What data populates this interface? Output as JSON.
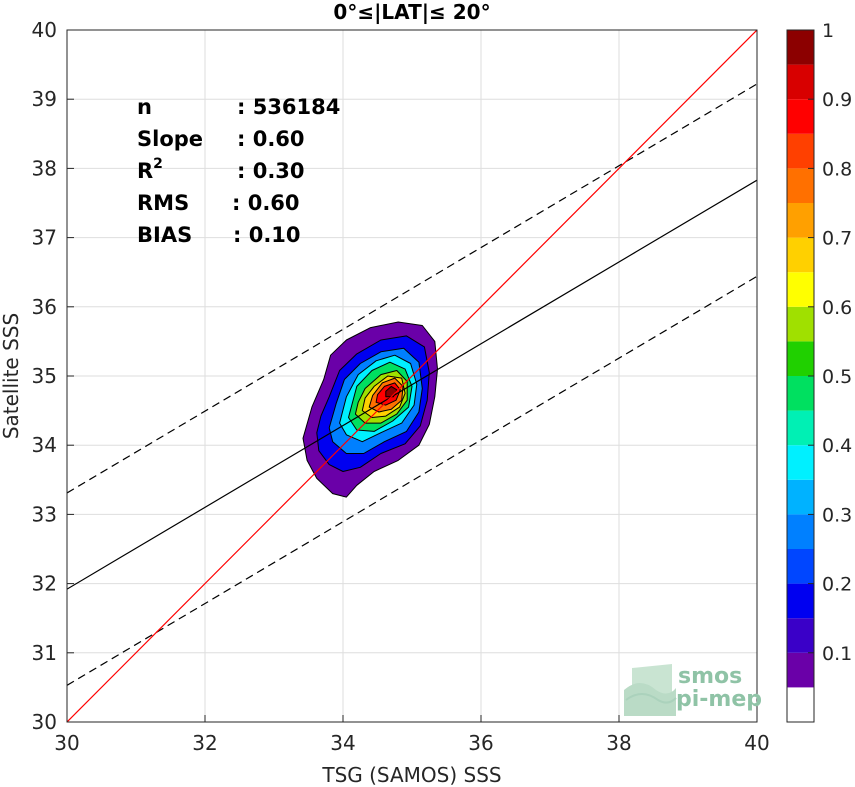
{
  "chart_data": {
    "type": "heatmap",
    "title": "0°≤|LAT|≤ 20°",
    "xlabel": "TSG (SAMOS) SSS",
    "ylabel": "Satellite SSS",
    "xlim": [
      30,
      40
    ],
    "ylim": [
      30,
      40
    ],
    "xticks": [
      "30",
      "32",
      "34",
      "36",
      "38",
      "40"
    ],
    "yticks": [
      "30",
      "31",
      "32",
      "33",
      "34",
      "35",
      "36",
      "37",
      "38",
      "39",
      "40"
    ],
    "grid": true,
    "stats": [
      {
        "label": "n",
        "value": ": 536184",
        "superscript": ""
      },
      {
        "label": "Slope",
        "value": ": 0.60",
        "superscript": ""
      },
      {
        "label": "R",
        "value": ": 0.30",
        "superscript": "2"
      },
      {
        "label": "RMS",
        "value": ": 0.60",
        "superscript": ""
      },
      {
        "label": "BIAS",
        "value": ": 0.10",
        "superscript": ""
      }
    ],
    "lines": {
      "identity": {
        "slope": 1.0,
        "intercept": 0.0,
        "color": "#ff0000",
        "style": "solid"
      },
      "regression": {
        "x": [
          30,
          40
        ],
        "y": [
          31.92,
          37.83
        ],
        "color": "#000000",
        "style": "solid"
      },
      "upper_band": {
        "x": [
          30,
          40
        ],
        "y": [
          33.31,
          39.22
        ],
        "color": "#000000",
        "style": "dashed"
      },
      "lower_band": {
        "x": [
          30,
          40
        ],
        "y": [
          30.53,
          36.44
        ],
        "color": "#000000",
        "style": "dashed"
      }
    },
    "density_center": {
      "x": 34.7,
      "y": 34.75
    },
    "density_contours": [
      {
        "level": 0.05,
        "points": [
          [
            33.42,
            34.1
          ],
          [
            33.48,
            33.78
          ],
          [
            33.62,
            33.52
          ],
          [
            33.85,
            33.3
          ],
          [
            34.05,
            33.25
          ],
          [
            34.2,
            33.42
          ],
          [
            34.45,
            33.62
          ],
          [
            34.8,
            33.78
          ],
          [
            35.1,
            34.0
          ],
          [
            35.25,
            34.3
          ],
          [
            35.33,
            34.7
          ],
          [
            35.37,
            35.1
          ],
          [
            35.33,
            35.5
          ],
          [
            35.15,
            35.73
          ],
          [
            34.8,
            35.78
          ],
          [
            34.4,
            35.7
          ],
          [
            34.05,
            35.52
          ],
          [
            33.82,
            35.3
          ],
          [
            33.72,
            34.95
          ],
          [
            33.55,
            34.55
          ]
        ]
      },
      {
        "level": 0.15,
        "points": [
          [
            33.62,
            34.18
          ],
          [
            33.65,
            33.92
          ],
          [
            33.8,
            33.72
          ],
          [
            34.0,
            33.62
          ],
          [
            34.25,
            33.68
          ],
          [
            34.55,
            33.88
          ],
          [
            34.9,
            34.02
          ],
          [
            35.12,
            34.28
          ],
          [
            35.22,
            34.65
          ],
          [
            35.25,
            35.05
          ],
          [
            35.18,
            35.42
          ],
          [
            34.92,
            35.58
          ],
          [
            34.55,
            35.52
          ],
          [
            34.2,
            35.32
          ],
          [
            33.95,
            35.08
          ],
          [
            33.8,
            34.7
          ],
          [
            33.68,
            34.42
          ]
        ]
      },
      {
        "level": 0.25,
        "points": [
          [
            33.8,
            34.25
          ],
          [
            33.85,
            34.05
          ],
          [
            34.05,
            33.88
          ],
          [
            34.3,
            33.88
          ],
          [
            34.6,
            34.05
          ],
          [
            34.92,
            34.2
          ],
          [
            35.1,
            34.48
          ],
          [
            35.15,
            34.82
          ],
          [
            35.1,
            35.2
          ],
          [
            34.88,
            35.4
          ],
          [
            34.55,
            35.35
          ],
          [
            34.25,
            35.18
          ],
          [
            34.02,
            34.95
          ],
          [
            33.9,
            34.6
          ]
        ]
      },
      {
        "level": 0.35,
        "points": [
          [
            33.95,
            34.32
          ],
          [
            34.05,
            34.15
          ],
          [
            34.28,
            34.05
          ],
          [
            34.55,
            34.18
          ],
          [
            34.85,
            34.32
          ],
          [
            35.03,
            34.58
          ],
          [
            35.07,
            34.88
          ],
          [
            34.98,
            35.18
          ],
          [
            34.75,
            35.3
          ],
          [
            34.48,
            35.22
          ],
          [
            34.22,
            35.02
          ],
          [
            34.05,
            34.7
          ]
        ]
      },
      {
        "level": 0.45,
        "points": [
          [
            34.08,
            34.4
          ],
          [
            34.2,
            34.22
          ],
          [
            34.45,
            34.2
          ],
          [
            34.72,
            34.35
          ],
          [
            34.95,
            34.55
          ],
          [
            35.0,
            34.85
          ],
          [
            34.9,
            35.1
          ],
          [
            34.68,
            35.2
          ],
          [
            34.42,
            35.08
          ],
          [
            34.2,
            34.85
          ]
        ]
      },
      {
        "level": 0.55,
        "points": [
          [
            34.18,
            34.45
          ],
          [
            34.32,
            34.32
          ],
          [
            34.55,
            34.32
          ],
          [
            34.78,
            34.45
          ],
          [
            34.93,
            34.65
          ],
          [
            34.93,
            34.92
          ],
          [
            34.78,
            35.08
          ],
          [
            34.55,
            35.02
          ],
          [
            34.32,
            34.82
          ],
          [
            34.22,
            34.62
          ]
        ]
      },
      {
        "level": 0.65,
        "points": [
          [
            34.28,
            34.5
          ],
          [
            34.42,
            34.4
          ],
          [
            34.62,
            34.42
          ],
          [
            34.82,
            34.55
          ],
          [
            34.9,
            34.75
          ],
          [
            34.85,
            34.97
          ],
          [
            34.65,
            35.0
          ],
          [
            34.45,
            34.85
          ],
          [
            34.32,
            34.68
          ]
        ]
      },
      {
        "level": 0.75,
        "points": [
          [
            34.38,
            34.55
          ],
          [
            34.52,
            34.48
          ],
          [
            34.7,
            34.52
          ],
          [
            34.85,
            34.65
          ],
          [
            34.87,
            34.85
          ],
          [
            34.75,
            34.97
          ],
          [
            34.57,
            34.9
          ],
          [
            34.43,
            34.72
          ]
        ]
      },
      {
        "level": 0.85,
        "points": [
          [
            34.48,
            34.62
          ],
          [
            34.62,
            34.58
          ],
          [
            34.77,
            34.65
          ],
          [
            34.83,
            34.8
          ],
          [
            34.75,
            34.9
          ],
          [
            34.6,
            34.85
          ],
          [
            34.5,
            34.73
          ]
        ]
      },
      {
        "level": 0.95,
        "points": [
          [
            34.62,
            34.7
          ],
          [
            34.73,
            34.7
          ],
          [
            34.78,
            34.8
          ],
          [
            34.7,
            34.85
          ],
          [
            34.62,
            34.78
          ]
        ]
      }
    ],
    "colorbar": {
      "ticks": [
        "0.1",
        "0.2",
        "0.3",
        "0.4",
        "0.5",
        "0.6",
        "0.7",
        "0.8",
        "0.9",
        "1"
      ],
      "levels": [
        {
          "from": 0.0,
          "to": 0.05,
          "color": "#ffffff"
        },
        {
          "from": 0.05,
          "to": 0.1,
          "color": "#6a00a8"
        },
        {
          "from": 0.1,
          "to": 0.15,
          "color": "#3a00c8"
        },
        {
          "from": 0.15,
          "to": 0.2,
          "color": "#0000f0"
        },
        {
          "from": 0.2,
          "to": 0.25,
          "color": "#0046ff"
        },
        {
          "from": 0.25,
          "to": 0.3,
          "color": "#0080ff"
        },
        {
          "from": 0.3,
          "to": 0.35,
          "color": "#00b2ff"
        },
        {
          "from": 0.35,
          "to": 0.4,
          "color": "#00f0ff"
        },
        {
          "from": 0.4,
          "to": 0.45,
          "color": "#00f0b4"
        },
        {
          "from": 0.45,
          "to": 0.5,
          "color": "#00e060"
        },
        {
          "from": 0.5,
          "to": 0.55,
          "color": "#20d000"
        },
        {
          "from": 0.55,
          "to": 0.6,
          "color": "#a0e000"
        },
        {
          "from": 0.6,
          "to": 0.65,
          "color": "#ffff00"
        },
        {
          "from": 0.65,
          "to": 0.7,
          "color": "#ffd000"
        },
        {
          "from": 0.7,
          "to": 0.75,
          "color": "#ffa000"
        },
        {
          "from": 0.75,
          "to": 0.8,
          "color": "#ff7000"
        },
        {
          "from": 0.8,
          "to": 0.85,
          "color": "#ff4000"
        },
        {
          "from": 0.85,
          "to": 0.9,
          "color": "#ff0000"
        },
        {
          "from": 0.9,
          "to": 0.95,
          "color": "#d80000"
        },
        {
          "from": 0.95,
          "to": 1.0,
          "color": "#8c0000"
        }
      ]
    }
  },
  "watermark": {
    "line1": "smos",
    "line2": "pi-mep"
  }
}
